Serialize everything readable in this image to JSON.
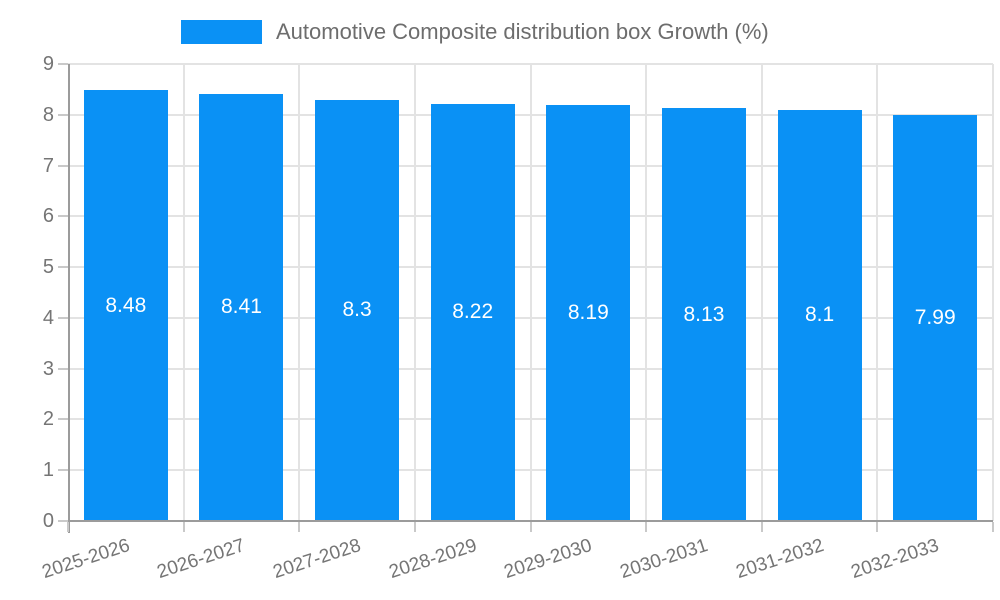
{
  "legend": {
    "label": "Automotive Composite distribution box Growth (%)"
  },
  "chart_data": {
    "type": "bar",
    "title": "Automotive Composite distribution box Growth (%)",
    "categories": [
      "2025-2026",
      "2026-2027",
      "2027-2028",
      "2028-2029",
      "2029-2030",
      "2030-2031",
      "2031-2032",
      "2032-2033"
    ],
    "values": [
      8.48,
      8.41,
      8.3,
      8.22,
      8.19,
      8.13,
      8.1,
      7.99
    ],
    "bar_labels": [
      "8.48",
      "8.41",
      "8.3",
      "8.22",
      "8.19",
      "8.13",
      "8.1",
      "7.99"
    ],
    "xlabel": "",
    "ylabel": "",
    "ylim": [
      0,
      9
    ],
    "y_ticks": [
      0,
      1,
      2,
      3,
      4,
      5,
      6,
      7,
      8,
      9
    ],
    "grid": true,
    "legend_position": "top",
    "colors": {
      "bar": "#0A91F5",
      "bar_label": "#FFFFFF",
      "axis_line": "#9B9B9B",
      "gridline": "#E3E3E3",
      "tick_mark": "#C9C9C9",
      "tick_label": "#757575",
      "legend_text": "#6D6D6D",
      "background": "#FFFFFF"
    }
  }
}
